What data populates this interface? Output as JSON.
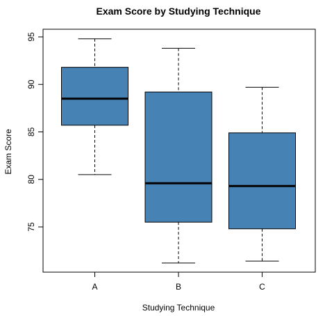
{
  "chart_data": {
    "type": "box",
    "title": "Exam Score by Studying Technique",
    "xlabel": "Studying Technique",
    "ylabel": "Exam Score",
    "ylim": [
      70,
      96
    ],
    "yticks": [
      75,
      80,
      85,
      90,
      95
    ],
    "box_color": "#4682b4",
    "categories": [
      "A",
      "B",
      "C"
    ],
    "boxes": [
      {
        "label": "A",
        "min": 80.5,
        "q1": 85.7,
        "median": 88.5,
        "q3": 91.8,
        "max": 94.8
      },
      {
        "label": "B",
        "min": 71.2,
        "q1": 75.5,
        "median": 79.6,
        "q3": 89.2,
        "max": 93.8
      },
      {
        "label": "C",
        "min": 71.4,
        "q1": 74.8,
        "median": 79.3,
        "q3": 84.9,
        "max": 89.7
      }
    ]
  }
}
